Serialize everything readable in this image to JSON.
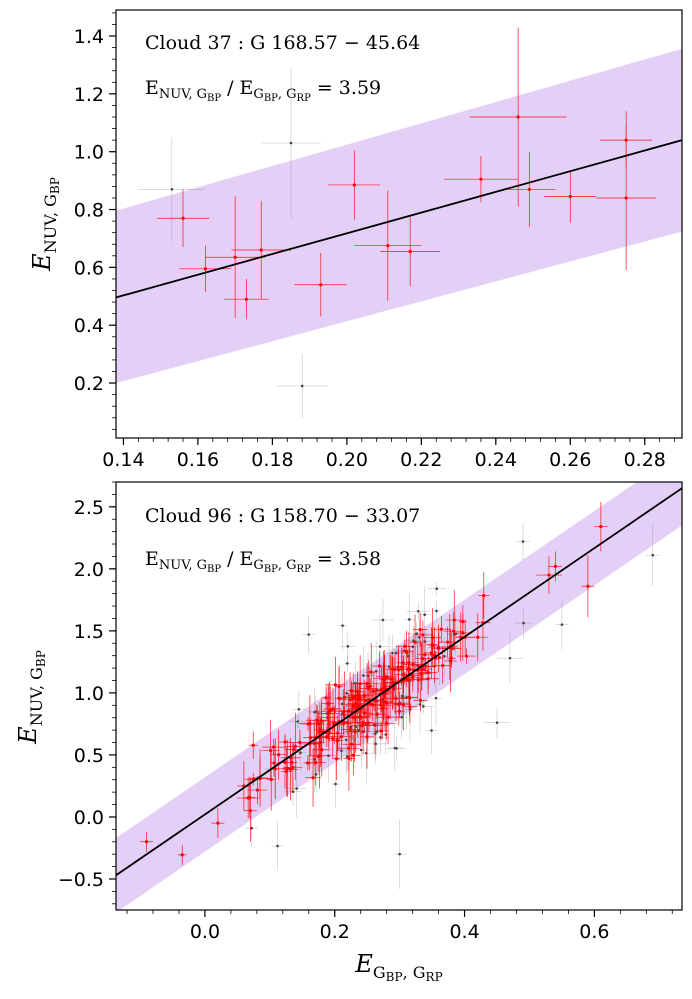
{
  "colors": {
    "band": "#e4cff7",
    "fit_line": "#000000",
    "selected_points": "#ff0000",
    "rejected_points": "#808080"
  },
  "chart_data": [
    {
      "type": "scatter",
      "title": "",
      "annotation_lines": [
        {
          "main": "Cloud 37 : G 168.57 − 45.64",
          "sub": ""
        },
        {
          "main": "E",
          "sub1": "NUV, G",
          "sub1b": "BP",
          "mid": " / E",
          "sub2": "G",
          "sub2b": "BP",
          "sub2c": ", G",
          "sub2d": "RP",
          "tail": " = 3.59"
        }
      ],
      "xlabel": "",
      "ylabel": {
        "main": "E",
        "sub": "NUV, G",
        "subsub": "BP"
      },
      "xlim": [
        0.138,
        0.29
      ],
      "ylim": [
        0.01,
        1.49
      ],
      "xticks": [
        0.14,
        0.16,
        0.18,
        0.2,
        0.22,
        0.24,
        0.26,
        0.28
      ],
      "xtick_labels": [
        "0.14",
        "0.16",
        "0.18",
        "0.20",
        "0.22",
        "0.24",
        "0.26",
        "0.28"
      ],
      "yticks": [
        0.2,
        0.4,
        0.6,
        0.8,
        1.0,
        1.2,
        1.4
      ],
      "ytick_labels": [
        "0.2",
        "0.4",
        "0.6",
        "0.8",
        "1.0",
        "1.2",
        "1.4"
      ],
      "fit": {
        "x": [
          0.138,
          0.29
        ],
        "y": [
          0.496,
          1.04
        ]
      },
      "band": {
        "upper": [
          0.796,
          1.356
        ],
        "lower": [
          0.2,
          0.724
        ]
      },
      "points": [
        {
          "x": 0.156,
          "y": 0.77,
          "xerr": 0.007,
          "yerr": 0.1,
          "group": "selected"
        },
        {
          "x": 0.162,
          "y": 0.595,
          "xerr": 0.007,
          "yerr": 0.08,
          "group": "selected"
        },
        {
          "x": 0.17,
          "y": 0.635,
          "xerr": 0.008,
          "yerr": 0.21,
          "group": "selected"
        },
        {
          "x": 0.173,
          "y": 0.49,
          "xerr": 0.006,
          "yerr": 0.07,
          "group": "selected"
        },
        {
          "x": 0.177,
          "y": 0.66,
          "xerr": 0.008,
          "yerr": 0.17,
          "group": "selected"
        },
        {
          "x": 0.193,
          "y": 0.54,
          "xerr": 0.007,
          "yerr": 0.11,
          "group": "selected"
        },
        {
          "x": 0.202,
          "y": 0.885,
          "xerr": 0.007,
          "yerr": 0.12,
          "group": "selected"
        },
        {
          "x": 0.211,
          "y": 0.675,
          "xerr": 0.009,
          "yerr": 0.19,
          "group": "selected"
        },
        {
          "x": 0.217,
          "y": 0.655,
          "xerr": 0.008,
          "yerr": 0.12,
          "group": "selected"
        },
        {
          "x": 0.236,
          "y": 0.905,
          "xerr": 0.01,
          "yerr": 0.08,
          "group": "selected"
        },
        {
          "x": 0.246,
          "y": 1.12,
          "xerr": 0.013,
          "yerr": 0.31,
          "group": "selected"
        },
        {
          "x": 0.249,
          "y": 0.87,
          "xerr": 0.007,
          "yerr": 0.13,
          "group": "selected"
        },
        {
          "x": 0.26,
          "y": 0.845,
          "xerr": 0.007,
          "yerr": 0.09,
          "group": "selected"
        },
        {
          "x": 0.275,
          "y": 1.04,
          "xerr": 0.007,
          "yerr": 0.1,
          "group": "selected"
        },
        {
          "x": 0.275,
          "y": 0.84,
          "xerr": 0.008,
          "yerr": 0.25,
          "group": "selected"
        },
        {
          "x": 0.153,
          "y": 0.87,
          "xerr": 0.009,
          "yerr": 0.18,
          "group": "rejected"
        },
        {
          "x": 0.185,
          "y": 1.03,
          "xerr": 0.008,
          "yerr": 0.26,
          "group": "rejected"
        },
        {
          "x": 0.188,
          "y": 0.19,
          "xerr": 0.007,
          "yerr": 0.11,
          "group": "rejected"
        }
      ]
    },
    {
      "type": "scatter",
      "title": "",
      "annotation_lines": [
        {
          "main": "Cloud 96 : G 158.70 − 33.07",
          "sub": ""
        },
        {
          "main": "E",
          "sub1": "NUV, G",
          "sub1b": "BP",
          "mid": " / E",
          "sub2": "G",
          "sub2b": "BP",
          "sub2c": ", G",
          "sub2d": "RP",
          "tail": " = 3.58"
        }
      ],
      "xlabel": {
        "main": "E",
        "sub": "G",
        "subsub": "BP",
        "sub2": ", G",
        "subsub2": "RP"
      },
      "ylabel": {
        "main": "E",
        "sub": "NUV, G",
        "subsub": "BP"
      },
      "xlim": [
        -0.137,
        0.735
      ],
      "ylim": [
        -0.75,
        2.7
      ],
      "xticks": [
        0.0,
        0.2,
        0.4,
        0.6
      ],
      "xtick_labels": [
        "0.0",
        "0.2",
        "0.4",
        "0.6"
      ],
      "yticks": [
        -0.5,
        0.0,
        0.5,
        1.0,
        1.5,
        2.0,
        2.5
      ],
      "ytick_labels": [
        "−0.5",
        "0.0",
        "0.5",
        "1.0",
        "1.5",
        "2.0",
        "2.5"
      ],
      "fit": {
        "x": [
          -0.137,
          0.735
        ],
        "y": [
          -0.47,
          2.65
        ]
      },
      "band": {
        "upper": [
          -0.17,
          2.95
        ],
        "lower": [
          -0.77,
          2.35
        ]
      },
      "points_generated": {
        "trend_slope": 3.58,
        "trend_intercept": 0.02,
        "selected_count": 210,
        "rejected_count": 90,
        "x_center": 0.255,
        "x_spread": 0.09
      },
      "points": [
        {
          "x": -0.09,
          "y": -0.2,
          "xerr": 0.01,
          "yerr": 0.08,
          "group": "selected"
        },
        {
          "x": 0.02,
          "y": -0.05,
          "xerr": 0.01,
          "yerr": 0.12,
          "group": "selected"
        },
        {
          "x": 0.06,
          "y": 0.25,
          "xerr": 0.01,
          "yerr": 0.2,
          "group": "selected"
        },
        {
          "x": 0.07,
          "y": 0.05,
          "xerr": 0.01,
          "yerr": 0.25,
          "group": "selected"
        },
        {
          "x": 0.53,
          "y": 1.95,
          "xerr": 0.02,
          "yerr": 0.15,
          "group": "selected"
        },
        {
          "x": 0.54,
          "y": 2.02,
          "xerr": 0.01,
          "yerr": 0.12,
          "group": "selected"
        },
        {
          "x": 0.59,
          "y": 1.86,
          "xerr": 0.01,
          "yerr": 0.25,
          "group": "selected"
        },
        {
          "x": 0.61,
          "y": 2.34,
          "xerr": 0.01,
          "yerr": 0.2,
          "group": "selected"
        },
        {
          "x": 0.49,
          "y": 2.22,
          "xerr": 0.01,
          "yerr": 0.15,
          "group": "rejected"
        },
        {
          "x": 0.69,
          "y": 2.11,
          "xerr": 0.01,
          "yerr": 0.25,
          "group": "rejected"
        },
        {
          "x": 0.45,
          "y": 0.76,
          "xerr": 0.02,
          "yerr": 0.12,
          "group": "rejected"
        },
        {
          "x": 0.55,
          "y": 1.55,
          "xerr": 0.01,
          "yerr": 0.2,
          "group": "rejected"
        },
        {
          "x": 0.3,
          "y": -0.3,
          "xerr": 0.01,
          "yerr": 0.28,
          "group": "rejected"
        },
        {
          "x": 0.16,
          "y": 1.47,
          "xerr": 0.01,
          "yerr": 0.15,
          "group": "rejected"
        },
        {
          "x": 0.47,
          "y": 1.28,
          "xerr": 0.02,
          "yerr": 0.2,
          "group": "rejected"
        }
      ]
    }
  ]
}
